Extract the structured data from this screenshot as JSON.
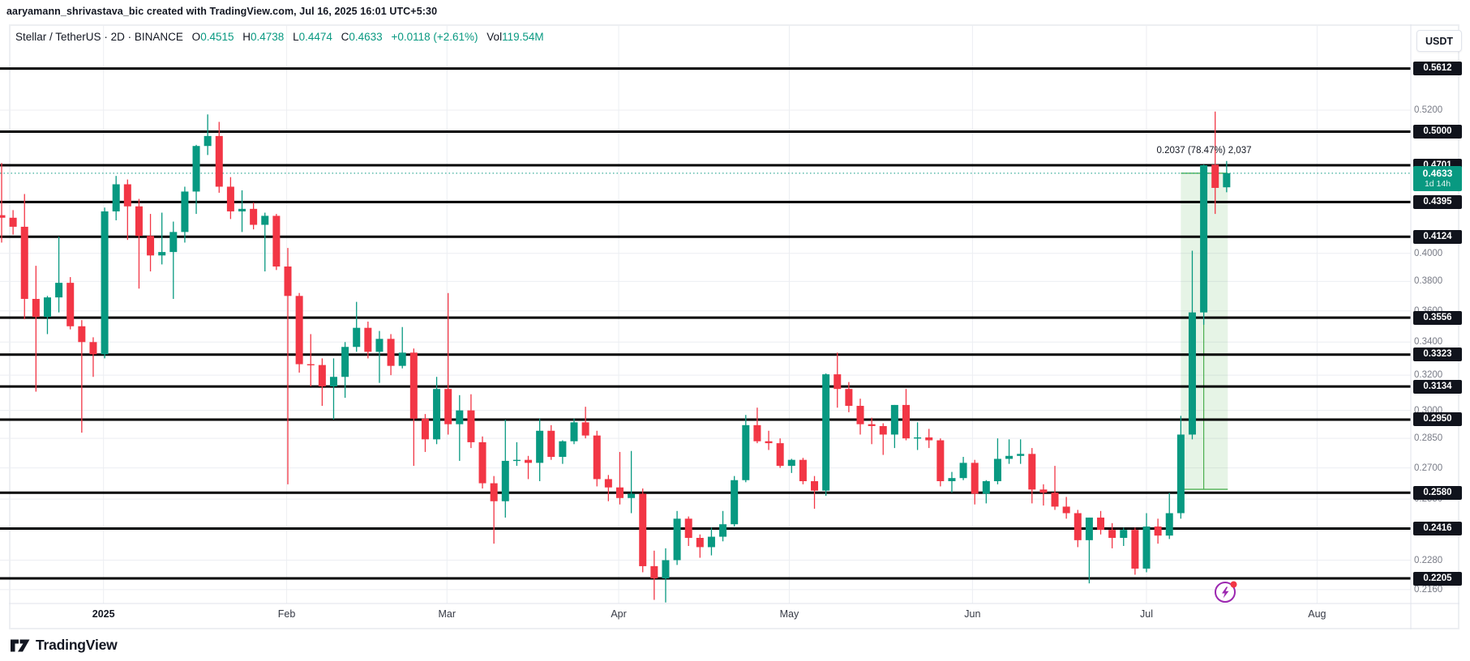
{
  "attribution": "aaryamann_shrivastava_bic created with TradingView.com, Jul 16, 2025 16:01 UTC+5:30",
  "legend": {
    "title": "Stellar / TetherUS",
    "separator": "·",
    "interval": "2D",
    "exchange": "BINANCE",
    "fields": [
      {
        "label": "O",
        "value": "0.4515"
      },
      {
        "label": "H",
        "value": "0.4738"
      },
      {
        "label": "L",
        "value": "0.4474"
      },
      {
        "label": "C",
        "value": "0.4633"
      }
    ],
    "change": "+0.0118 (+2.61%)",
    "volume_label": "Vol",
    "volume_value": "119.54M"
  },
  "axis_right": {
    "currency_button": "USDT",
    "current_price": {
      "value": 0.4633,
      "label": "0.4633",
      "countdown": "1d 14h"
    },
    "level_badges": [
      {
        "value": 0.5612,
        "label": "0.5612"
      },
      {
        "value": 0.5,
        "label": "0.5000"
      },
      {
        "value": 0.4701,
        "label": "0.4701"
      },
      {
        "value": 0.4395,
        "label": "0.4395"
      },
      {
        "value": 0.4124,
        "label": "0.4124"
      },
      {
        "value": 0.3556,
        "label": "0.3556"
      },
      {
        "value": 0.3323,
        "label": "0.3323"
      },
      {
        "value": 0.3134,
        "label": "0.3134"
      },
      {
        "value": 0.295,
        "label": "0.2950"
      },
      {
        "value": 0.258,
        "label": "0.2580"
      },
      {
        "value": 0.2416,
        "label": "0.2416"
      },
      {
        "value": 0.2205,
        "label": "0.2205"
      }
    ],
    "grid_labels": [
      {
        "value": 0.52,
        "label": "0.5200"
      },
      {
        "value": 0.4,
        "label": "0.4000"
      },
      {
        "value": 0.38,
        "label": "0.3800"
      },
      {
        "value": 0.36,
        "label": "0.3600"
      },
      {
        "value": 0.34,
        "label": "0.3400"
      },
      {
        "value": 0.32,
        "label": "0.3200"
      },
      {
        "value": 0.3,
        "label": "0.3000"
      },
      {
        "value": 0.285,
        "label": "0.2850"
      },
      {
        "value": 0.27,
        "label": "0.2700"
      },
      {
        "value": 0.255,
        "label": "0.2550"
      },
      {
        "value": 0.242,
        "label": "0.2420"
      },
      {
        "value": 0.228,
        "label": "0.2280"
      },
      {
        "value": 0.216,
        "label": "0.2160"
      }
    ]
  },
  "time_axis": [
    {
      "label": "2025",
      "index": 8.9,
      "year": true
    },
    {
      "label": "Feb",
      "index": 24.9,
      "year": false
    },
    {
      "label": "Mar",
      "index": 38.9,
      "year": false
    },
    {
      "label": "Apr",
      "index": 53.9,
      "year": false
    },
    {
      "label": "May",
      "index": 68.8,
      "year": false
    },
    {
      "label": "Jun",
      "index": 84.8,
      "year": false
    },
    {
      "label": "Jul",
      "index": 100.0,
      "year": false
    },
    {
      "label": "Aug",
      "index": 114.9,
      "year": false
    }
  ],
  "measure_tool": {
    "label": "0.2037 (78.47%) 2,037",
    "price_from": 0.2596,
    "price_to": 0.4633,
    "start_index": 103.0,
    "end_index": 107.1,
    "center_index": 105.0
  },
  "logo_text": "TradingView",
  "colors": {
    "up": "#089981",
    "down": "#f23645",
    "ray": "#000000",
    "grid": "#eceef2",
    "axis_text": "#787b86",
    "badge_bg": "#10131c",
    "accent": "#089981",
    "measure_line": "#4caf50",
    "measure_fill": "rgba(76,175,80,0.14)",
    "icon_purple": "#9c27b0",
    "alert_dot": "#f23645"
  },
  "chart_data": {
    "type": "candlestick",
    "symbol": "Stellar / TetherUS",
    "interval": "2D",
    "exchange": "BINANCE",
    "scale": "logarithmic",
    "price_range_visible": [
      0.211,
      0.575
    ],
    "horizontal_ray_levels": [
      0.5612,
      0.5,
      0.4701,
      0.4395,
      0.4124,
      0.3556,
      0.3323,
      0.3134,
      0.295,
      0.258,
      0.2416,
      0.2205
    ],
    "current_price": 0.4633,
    "candles_ohlc": [
      [
        0.429,
        0.472,
        0.408,
        0.427
      ],
      [
        0.427,
        0.433,
        0.414,
        0.42
      ],
      [
        0.42,
        0.446,
        0.3545,
        0.368
      ],
      [
        0.368,
        0.391,
        0.3105,
        0.356
      ],
      [
        0.356,
        0.37,
        0.345,
        0.369
      ],
      [
        0.369,
        0.4125,
        0.359,
        0.379
      ],
      [
        0.379,
        0.383,
        0.348,
        0.35
      ],
      [
        0.35,
        0.354,
        0.288,
        0.34
      ],
      [
        0.34,
        0.343,
        0.319,
        0.3325
      ],
      [
        0.3325,
        0.435,
        0.33,
        0.432
      ],
      [
        0.432,
        0.461,
        0.425,
        0.454
      ],
      [
        0.454,
        0.458,
        0.41,
        0.436
      ],
      [
        0.436,
        0.442,
        0.375,
        0.413
      ],
      [
        0.413,
        0.43,
        0.387,
        0.3985
      ],
      [
        0.3985,
        0.431,
        0.392,
        0.401
      ],
      [
        0.401,
        0.424,
        0.368,
        0.416
      ],
      [
        0.416,
        0.452,
        0.408,
        0.448
      ],
      [
        0.448,
        0.488,
        0.43,
        0.487
      ],
      [
        0.487,
        0.516,
        0.479,
        0.496
      ],
      [
        0.496,
        0.509,
        0.447,
        0.452
      ],
      [
        0.452,
        0.46,
        0.426,
        0.432
      ],
      [
        0.432,
        0.449,
        0.416,
        0.434
      ],
      [
        0.434,
        0.439,
        0.418,
        0.4215
      ],
      [
        0.4215,
        0.431,
        0.387,
        0.4285
      ],
      [
        0.4285,
        0.43,
        0.388,
        0.3905
      ],
      [
        0.3905,
        0.404,
        0.262,
        0.37
      ],
      [
        0.37,
        0.372,
        0.3215,
        0.3265
      ],
      [
        0.3265,
        0.345,
        0.3135,
        0.326
      ],
      [
        0.326,
        0.33,
        0.3025,
        0.3135
      ],
      [
        0.3135,
        0.33,
        0.295,
        0.319
      ],
      [
        0.319,
        0.34,
        0.307,
        0.337
      ],
      [
        0.337,
        0.366,
        0.334,
        0.349
      ],
      [
        0.349,
        0.353,
        0.33,
        0.334
      ],
      [
        0.334,
        0.347,
        0.3155,
        0.342
      ],
      [
        0.342,
        0.345,
        0.32,
        0.3255
      ],
      [
        0.3255,
        0.3495,
        0.324,
        0.3335
      ],
      [
        0.3335,
        0.336,
        0.271,
        0.2955
      ],
      [
        0.2955,
        0.298,
        0.278,
        0.2845
      ],
      [
        0.2845,
        0.319,
        0.282,
        0.312
      ],
      [
        0.312,
        0.372,
        0.287,
        0.2925
      ],
      [
        0.2925,
        0.3085,
        0.2735,
        0.3
      ],
      [
        0.3,
        0.309,
        0.28,
        0.283
      ],
      [
        0.283,
        0.286,
        0.26,
        0.2625
      ],
      [
        0.2625,
        0.266,
        0.235,
        0.254
      ],
      [
        0.254,
        0.295,
        0.2465,
        0.2735
      ],
      [
        0.2735,
        0.283,
        0.271,
        0.274
      ],
      [
        0.274,
        0.276,
        0.2645,
        0.2725
      ],
      [
        0.2725,
        0.2955,
        0.2635,
        0.289
      ],
      [
        0.289,
        0.292,
        0.274,
        0.2755
      ],
      [
        0.2755,
        0.284,
        0.272,
        0.2835
      ],
      [
        0.2835,
        0.2955,
        0.282,
        0.2935
      ],
      [
        0.2935,
        0.302,
        0.285,
        0.2865
      ],
      [
        0.2865,
        0.289,
        0.261,
        0.2645
      ],
      [
        0.2645,
        0.2665,
        0.254,
        0.2605
      ],
      [
        0.2605,
        0.278,
        0.2525,
        0.2555
      ],
      [
        0.2555,
        0.2785,
        0.2485,
        0.2575
      ],
      [
        0.2575,
        0.26,
        0.223,
        0.2255
      ],
      [
        0.2255,
        0.232,
        0.212,
        0.2205
      ],
      [
        0.2205,
        0.233,
        0.211,
        0.228
      ],
      [
        0.228,
        0.2495,
        0.226,
        0.246
      ],
      [
        0.246,
        0.247,
        0.234,
        0.2375
      ],
      [
        0.2375,
        0.239,
        0.229,
        0.2335
      ],
      [
        0.2335,
        0.242,
        0.23,
        0.238
      ],
      [
        0.238,
        0.2495,
        0.236,
        0.2435
      ],
      [
        0.2435,
        0.266,
        0.2425,
        0.264
      ],
      [
        0.264,
        0.2975,
        0.263,
        0.292
      ],
      [
        0.292,
        0.3015,
        0.2825,
        0.2835
      ],
      [
        0.2835,
        0.289,
        0.279,
        0.2825
      ],
      [
        0.2825,
        0.285,
        0.27,
        0.271
      ],
      [
        0.271,
        0.2745,
        0.2675,
        0.274
      ],
      [
        0.274,
        0.275,
        0.262,
        0.2635
      ],
      [
        0.2635,
        0.266,
        0.2505,
        0.259
      ],
      [
        0.259,
        0.321,
        0.2565,
        0.3205
      ],
      [
        0.3205,
        0.3335,
        0.3015,
        0.312
      ],
      [
        0.312,
        0.316,
        0.299,
        0.3025
      ],
      [
        0.3025,
        0.3065,
        0.287,
        0.2925
      ],
      [
        0.2925,
        0.296,
        0.282,
        0.2915
      ],
      [
        0.2915,
        0.293,
        0.2765,
        0.287
      ],
      [
        0.287,
        0.303,
        0.28,
        0.303
      ],
      [
        0.303,
        0.312,
        0.284,
        0.285
      ],
      [
        0.285,
        0.2935,
        0.279,
        0.2855
      ],
      [
        0.2855,
        0.29,
        0.28,
        0.284
      ],
      [
        0.284,
        0.285,
        0.261,
        0.2635
      ],
      [
        0.2635,
        0.268,
        0.258,
        0.265
      ],
      [
        0.265,
        0.2755,
        0.264,
        0.2725
      ],
      [
        0.2725,
        0.274,
        0.2525,
        0.2575
      ],
      [
        0.2575,
        0.264,
        0.253,
        0.2635
      ],
      [
        0.2635,
        0.285,
        0.262,
        0.2745
      ],
      [
        0.2745,
        0.2845,
        0.272,
        0.276
      ],
      [
        0.276,
        0.2845,
        0.272,
        0.277
      ],
      [
        0.277,
        0.28,
        0.253,
        0.2595
      ],
      [
        0.2595,
        0.262,
        0.252,
        0.258
      ],
      [
        0.258,
        0.271,
        0.25,
        0.2515
      ],
      [
        0.2515,
        0.256,
        0.246,
        0.2485
      ],
      [
        0.2485,
        0.25,
        0.2335,
        0.2365
      ],
      [
        0.2365,
        0.2465,
        0.2185,
        0.2465
      ],
      [
        0.2465,
        0.2495,
        0.239,
        0.241
      ],
      [
        0.241,
        0.244,
        0.233,
        0.2375
      ],
      [
        0.2375,
        0.242,
        0.234,
        0.241
      ],
      [
        0.241,
        0.242,
        0.222,
        0.2245
      ],
      [
        0.2245,
        0.2485,
        0.223,
        0.2425
      ],
      [
        0.2425,
        0.246,
        0.235,
        0.2385
      ],
      [
        0.2385,
        0.258,
        0.237,
        0.2485
      ],
      [
        0.2485,
        0.297,
        0.246,
        0.287
      ],
      [
        0.287,
        0.402,
        0.2845,
        0.359
      ],
      [
        0.359,
        0.4706,
        0.351,
        0.4701
      ],
      [
        0.4706,
        0.5187,
        0.43,
        0.451
      ],
      [
        0.4515,
        0.4738,
        0.4474,
        0.4633
      ]
    ],
    "title": "Stellar / TetherUS · 2D · BINANCE",
    "legend_position": "top-left",
    "grid": true
  }
}
